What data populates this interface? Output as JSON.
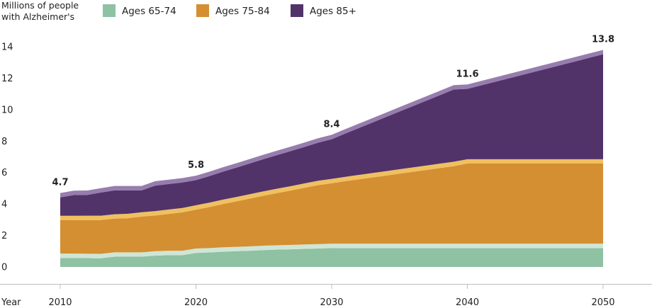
{
  "chart_data": {
    "type": "area",
    "stacked": true,
    "ylabel_lines": [
      "Millions of people",
      "with Alzheimer's"
    ],
    "xlabel": "Year",
    "x_ticks": [
      "2010",
      "2020",
      "2030",
      "2040",
      "2050"
    ],
    "y_ticks": [
      "0",
      "2",
      "4",
      "6",
      "8",
      "10",
      "12",
      "14"
    ],
    "xlim": [
      2010,
      2050
    ],
    "ylim": [
      0,
      14
    ],
    "x": [
      2010,
      2011,
      2012,
      2013,
      2014,
      2015,
      2016,
      2017,
      2018,
      2019,
      2020,
      2021,
      2022,
      2023,
      2024,
      2025,
      2026,
      2027,
      2028,
      2029,
      2030,
      2031,
      2032,
      2033,
      2034,
      2035,
      2036,
      2037,
      2038,
      2039,
      2040,
      2041,
      2042,
      2043,
      2044,
      2045,
      2046,
      2047,
      2048,
      2049,
      2050
    ],
    "series": [
      {
        "name": "Ages 65-74",
        "color": "#8fc1a3",
        "band_color": "#cfe6d7",
        "values": [
          0.85,
          0.85,
          0.84,
          0.83,
          0.93,
          0.93,
          0.93,
          1.0,
          1.03,
          1.03,
          1.17,
          1.2,
          1.25,
          1.28,
          1.31,
          1.35,
          1.38,
          1.4,
          1.43,
          1.45,
          1.48,
          1.48,
          1.48,
          1.48,
          1.48,
          1.48,
          1.48,
          1.48,
          1.48,
          1.48,
          1.48,
          1.48,
          1.48,
          1.48,
          1.48,
          1.48,
          1.48,
          1.48,
          1.48,
          1.48,
          1.48
        ]
      },
      {
        "name": "Ages 75-84",
        "color": "#d38f31",
        "band_color": "#f0c060",
        "values": [
          2.4,
          2.4,
          2.42,
          2.43,
          2.42,
          2.45,
          2.55,
          2.55,
          2.62,
          2.72,
          2.75,
          2.89,
          3.03,
          3.17,
          3.32,
          3.46,
          3.6,
          3.74,
          3.88,
          4.03,
          4.12,
          4.25,
          4.37,
          4.49,
          4.61,
          4.73,
          4.85,
          4.97,
          5.09,
          5.21,
          5.37,
          5.37,
          5.37,
          5.37,
          5.37,
          5.37,
          5.37,
          5.37,
          5.37,
          5.37,
          5.37
        ]
      },
      {
        "name": "Ages 85+",
        "color": "#51336a",
        "band_color": "#977dae",
        "values": [
          1.45,
          1.6,
          1.6,
          1.75,
          1.8,
          1.77,
          1.67,
          1.9,
          1.9,
          1.9,
          1.88,
          1.97,
          2.06,
          2.15,
          2.24,
          2.33,
          2.42,
          2.51,
          2.6,
          2.7,
          2.8,
          3.03,
          3.26,
          3.49,
          3.72,
          3.95,
          4.18,
          4.41,
          4.64,
          4.87,
          4.75,
          4.97,
          5.19,
          5.41,
          5.63,
          5.85,
          6.07,
          6.29,
          6.51,
          6.73,
          6.95
        ]
      }
    ],
    "totals": [
      4.7,
      5.8,
      8.4,
      11.6,
      13.8
    ],
    "total_label_x": [
      2010,
      2020,
      2030,
      2040,
      2050
    ],
    "total_labels": [
      "4.7",
      "5.8",
      "8.4",
      "11.6",
      "13.8"
    ],
    "legend": [
      "Ages 65-74",
      "Ages 75-84",
      "Ages 85+"
    ],
    "legend_position": "top",
    "grid": false
  }
}
